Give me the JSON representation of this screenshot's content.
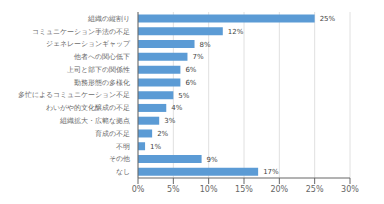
{
  "chart_data": {
    "type": "bar",
    "orientation": "horizontal",
    "categories": [
      "組織の縦割り",
      "コミュニケーション手法の不足",
      "ジェネレーションギャップ",
      "他者への関心低下",
      "上司と部下の関係性",
      "勤務形態の多様化",
      "多忙によるコミュニケーション不足",
      "わいがや的文化醸成の不足",
      "組織拡大・広範な拠点",
      "育成の不足",
      "不明",
      "その他",
      "なし"
    ],
    "values": [
      25,
      12,
      8,
      7,
      6,
      6,
      5,
      4,
      3,
      2,
      1,
      9,
      17
    ],
    "value_labels": [
      "25%",
      "12%",
      "8%",
      "7%",
      "6%",
      "6%",
      "5%",
      "4%",
      "3%",
      "2%",
      "1%",
      "9%",
      "17%"
    ],
    "data_labels": true,
    "color": "#5b9bd5",
    "xlim": [
      0,
      30
    ],
    "xticks": [
      {
        "value": 0,
        "label": "0%"
      },
      {
        "value": 5,
        "label": "5%"
      },
      {
        "value": 10,
        "label": "10%"
      },
      {
        "value": 15,
        "label": "15%"
      },
      {
        "value": 20,
        "label": "20%"
      },
      {
        "value": 25,
        "label": "25%"
      },
      {
        "value": 30,
        "label": "30%"
      }
    ],
    "grid": true
  }
}
